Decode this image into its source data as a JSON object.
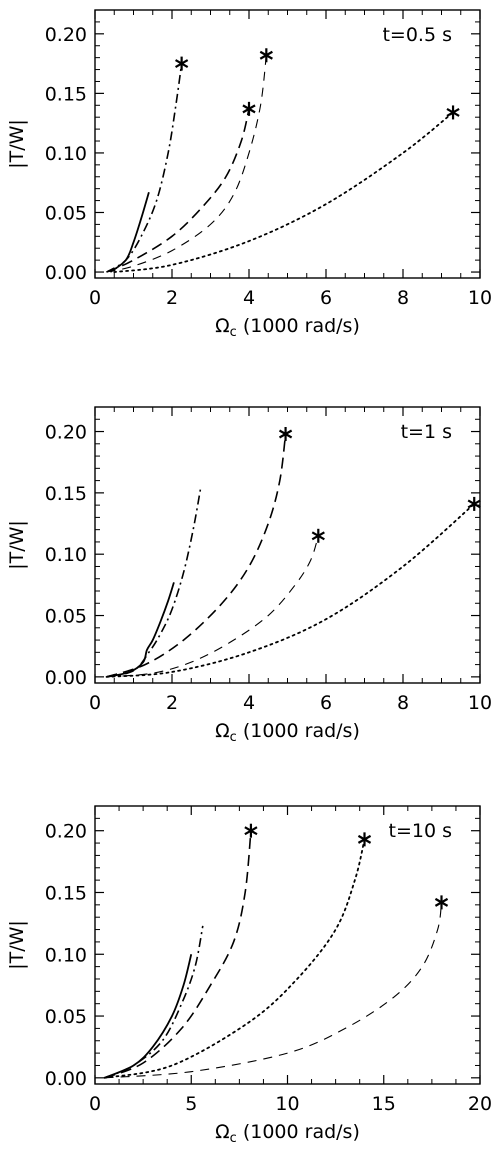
{
  "chart_data": [
    {
      "type": "line",
      "label": "t=0.5 s",
      "xlabel": "Ω_c (1000 rad/s)",
      "ylabel": "|T/W|",
      "xlim": [
        0,
        10
      ],
      "ylim": [
        -0.005,
        0.22
      ],
      "xticks": [
        "0",
        "2",
        "4",
        "6",
        "8",
        "10"
      ],
      "yticks": [
        "0.00",
        "0.05",
        "0.10",
        "0.15",
        "0.20"
      ],
      "series": [
        {
          "style": "solid",
          "x": [
            0.4,
            0.8,
            1.0,
            1.2,
            1.4
          ],
          "y": [
            0.0,
            0.01,
            0.025,
            0.045,
            0.067
          ],
          "end_marker": false
        },
        {
          "style": "dashdot",
          "x": [
            0.3,
            0.8,
            1.2,
            1.6,
            1.9,
            2.1,
            2.25
          ],
          "y": [
            0.0,
            0.01,
            0.03,
            0.06,
            0.1,
            0.14,
            0.175
          ],
          "end_marker": true
        },
        {
          "style": "dashed",
          "x": [
            0.3,
            1.0,
            2.0,
            2.8,
            3.4,
            3.8,
            4.0
          ],
          "y": [
            0.0,
            0.01,
            0.03,
            0.055,
            0.08,
            0.11,
            0.137
          ],
          "end_marker": true
        },
        {
          "style": "dashed-thin",
          "x": [
            0.3,
            1.0,
            2.0,
            3.0,
            3.6,
            4.0,
            4.3,
            4.45
          ],
          "y": [
            0.0,
            0.005,
            0.018,
            0.04,
            0.065,
            0.1,
            0.14,
            0.182
          ],
          "end_marker": true
        },
        {
          "style": "dotted",
          "x": [
            0.5,
            2.0,
            4.0,
            6.0,
            8.0,
            9.3
          ],
          "y": [
            0.0,
            0.006,
            0.026,
            0.057,
            0.1,
            0.134
          ],
          "end_marker": true
        }
      ]
    },
    {
      "type": "line",
      "label": "t=1 s",
      "xlabel": "Ω_c (1000 rad/s)",
      "ylabel": "|T/W|",
      "xlim": [
        0,
        10
      ],
      "ylim": [
        -0.005,
        0.22
      ],
      "xticks": [
        "0",
        "2",
        "4",
        "6",
        "8",
        "10"
      ],
      "yticks": [
        "0.00",
        "0.05",
        "0.10",
        "0.15",
        "0.20"
      ],
      "series": [
        {
          "style": "solid",
          "x": [
            0.3,
            0.9,
            1.25,
            1.35,
            1.5,
            1.7,
            1.9,
            2.05
          ],
          "y": [
            0.0,
            0.004,
            0.012,
            0.022,
            0.03,
            0.045,
            0.062,
            0.077
          ],
          "end_marker": false
        },
        {
          "style": "dashdot",
          "x": [
            0.3,
            1.0,
            1.4,
            1.7,
            2.0,
            2.3,
            2.55,
            2.75
          ],
          "y": [
            0.0,
            0.005,
            0.02,
            0.035,
            0.055,
            0.085,
            0.12,
            0.155
          ],
          "end_marker": false
        },
        {
          "style": "dashed",
          "x": [
            0.3,
            1.3,
            2.3,
            3.3,
            4.0,
            4.5,
            4.8,
            4.95
          ],
          "y": [
            0.0,
            0.01,
            0.03,
            0.06,
            0.09,
            0.125,
            0.16,
            0.198
          ],
          "end_marker": true
        },
        {
          "style": "dashed-thin",
          "x": [
            0.3,
            1.5,
            2.5,
            3.5,
            4.5,
            5.2,
            5.6,
            5.8
          ],
          "y": [
            0.0,
            0.003,
            0.012,
            0.028,
            0.05,
            0.075,
            0.095,
            0.115
          ],
          "end_marker": true
        },
        {
          "style": "dotted",
          "x": [
            0.3,
            2.0,
            4.0,
            6.0,
            8.0,
            9.85
          ],
          "y": [
            0.0,
            0.004,
            0.02,
            0.047,
            0.09,
            0.141
          ],
          "end_marker": true
        }
      ]
    },
    {
      "type": "line",
      "label": "t=10 s",
      "xlabel": "Ω_c (1000 rad/s)",
      "ylabel": "|T/W|",
      "xlim": [
        0,
        20
      ],
      "ylim": [
        -0.005,
        0.22
      ],
      "xticks": [
        "0",
        "5",
        "10",
        "15",
        "20"
      ],
      "yticks": [
        "0.00",
        "0.05",
        "0.10",
        "0.15",
        "0.20"
      ],
      "series": [
        {
          "style": "solid",
          "x": [
            0.5,
            2.0,
            3.0,
            4.0,
            4.6,
            5.0
          ],
          "y": [
            0.0,
            0.01,
            0.025,
            0.05,
            0.075,
            0.1
          ],
          "end_marker": false
        },
        {
          "style": "dashdot",
          "x": [
            0.5,
            2.0,
            3.5,
            4.5,
            5.2,
            5.6
          ],
          "y": [
            0.0,
            0.01,
            0.03,
            0.06,
            0.09,
            0.123
          ],
          "end_marker": false
        },
        {
          "style": "dashed",
          "x": [
            0.5,
            2.5,
            4.5,
            6.0,
            7.2,
            7.8,
            8.1
          ],
          "y": [
            0.0,
            0.012,
            0.04,
            0.075,
            0.11,
            0.15,
            0.2
          ],
          "end_marker": true
        },
        {
          "style": "dotted",
          "x": [
            0.5,
            4.0,
            8.0,
            10.5,
            12.5,
            13.5,
            14.0
          ],
          "y": [
            0.0,
            0.01,
            0.045,
            0.08,
            0.12,
            0.16,
            0.193
          ],
          "end_marker": true
        },
        {
          "style": "dashed-thin",
          "x": [
            0.5,
            5.0,
            10.0,
            13.0,
            15.5,
            17.0,
            17.8,
            18.0
          ],
          "y": [
            0.0,
            0.005,
            0.02,
            0.04,
            0.065,
            0.09,
            0.12,
            0.142
          ],
          "end_marker": true
        }
      ]
    }
  ]
}
